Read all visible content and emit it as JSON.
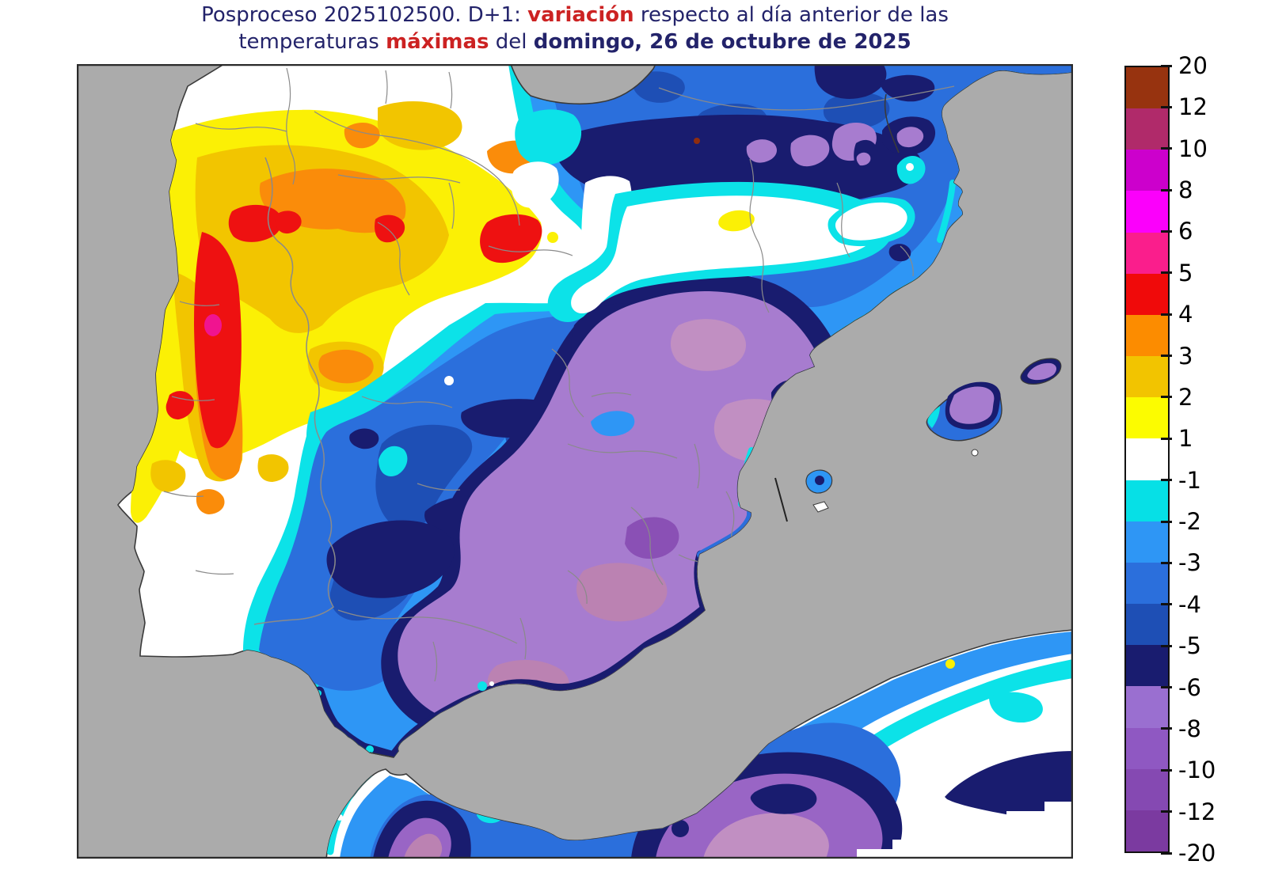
{
  "title": {
    "text_color": "#23236a",
    "accent_color": "#cc2222",
    "lines": [
      {
        "parts": [
          {
            "t": "Posproceso 2025102500. D+1: ",
            "s": "plain"
          },
          {
            "t": "variación",
            "s": "accent"
          },
          {
            "t": " respecto al día anterior de las",
            "s": "plain"
          }
        ]
      },
      {
        "parts": [
          {
            "t": "temperaturas ",
            "s": "plain"
          },
          {
            "t": "máximas",
            "s": "accent"
          },
          {
            "t": " del ",
            "s": "plain"
          },
          {
            "t": "domingo, 26 de octubre de 2025",
            "s": "bold"
          }
        ]
      }
    ]
  },
  "colorbar": {
    "tick_labels": [
      "20",
      "12",
      "10",
      "8",
      "6",
      "5",
      "4",
      "3",
      "2",
      "1",
      "-1",
      "-2",
      "-3",
      "-4",
      "-5",
      "-6",
      "-8",
      "-10",
      "-12",
      "-20"
    ],
    "segments": [
      {
        "from": "12",
        "to": "20",
        "color": "#97330f"
      },
      {
        "from": "10",
        "to": "12",
        "color": "#b02a6a"
      },
      {
        "from": "8",
        "to": "10",
        "color": "#cc00cc"
      },
      {
        "from": "6",
        "to": "8",
        "color": "#fb00fb"
      },
      {
        "from": "5",
        "to": "6",
        "color": "#fa1e8c"
      },
      {
        "from": "4",
        "to": "5",
        "color": "#f00a0a"
      },
      {
        "from": "3",
        "to": "4",
        "color": "#fc8c00"
      },
      {
        "from": "2",
        "to": "3",
        "color": "#f2c400"
      },
      {
        "from": "1",
        "to": "2",
        "color": "#fcfc00"
      },
      {
        "from": "-1",
        "to": "1",
        "color": "#ffffff"
      },
      {
        "from": "-2",
        "to": "-1",
        "color": "#06e0e6"
      },
      {
        "from": "-3",
        "to": "-2",
        "color": "#2e96f5"
      },
      {
        "from": "-4",
        "to": "-3",
        "color": "#2b6fdc"
      },
      {
        "from": "-5",
        "to": "-4",
        "color": "#1e4fb5"
      },
      {
        "from": "-6",
        "to": "-5",
        "color": "#191c6f"
      },
      {
        "from": "-8",
        "to": "-6",
        "color": "#9a6fd0"
      },
      {
        "from": "-10",
        "to": "-8",
        "color": "#8f58c2"
      },
      {
        "from": "-12",
        "to": "-10",
        "color": "#8549b2"
      },
      {
        "from": "-20",
        "to": "-12",
        "color": "#7b3aa0"
      }
    ]
  },
  "map": {
    "sea_color": "#ababab",
    "land_base_color": "#ffffff",
    "coastline_color": "#3a3a3a",
    "province_border_color": "#8a8a8a",
    "frame_color": "#2a2a2a",
    "field_colors": {
      "white": "#ffffff",
      "yellow": "#fbf005",
      "amber": "#f2c500",
      "orange": "#fa8c0a",
      "red": "#ee1111",
      "magenta": "#f01490",
      "maroon": "#8f2d0f",
      "cyan": "#0ce2e8",
      "blue1": "#2e96f5",
      "blue2": "#2b6fdc",
      "blue3": "#1e4fb5",
      "navy": "#191c6f",
      "purple1": "#a77ccf",
      "purple2": "#9965c5",
      "purple3": "#8a50b5",
      "pink1": "#c18fc2",
      "pink2": "#bb82b2"
    }
  }
}
